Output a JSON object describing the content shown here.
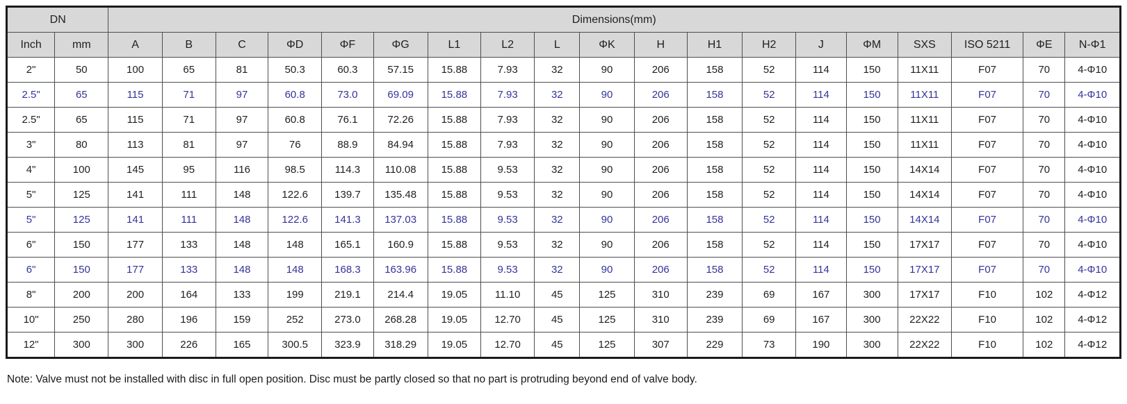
{
  "colors": {
    "header_bg": "#d8d8d8",
    "highlight_text": "#333399",
    "body_text": "#1f1f1f",
    "table_border": "#4d4d4d"
  },
  "table": {
    "group_headers": {
      "dn": "DN",
      "dimensions": "Dimensions(mm)"
    },
    "columns": [
      "Inch",
      "mm",
      "A",
      "B",
      "C",
      "ΦD",
      "ΦF",
      "ΦG",
      "L1",
      "L2",
      "L",
      "ΦK",
      "H",
      "H1",
      "H2",
      "J",
      "ΦM",
      "SXS",
      "ISO 5211",
      "ΦE",
      "N-Φ1"
    ],
    "rows": [
      {
        "highlighted": false,
        "cells": [
          "2\"",
          "50",
          "100",
          "65",
          "81",
          "50.3",
          "60.3",
          "57.15",
          "15.88",
          "7.93",
          "32",
          "90",
          "206",
          "158",
          "52",
          "114",
          "150",
          "11X11",
          "F07",
          "70",
          "4-Φ10"
        ]
      },
      {
        "highlighted": true,
        "cells": [
          "2.5\"",
          "65",
          "115",
          "71",
          "97",
          "60.8",
          "73.0",
          "69.09",
          "15.88",
          "7.93",
          "32",
          "90",
          "206",
          "158",
          "52",
          "114",
          "150",
          "11X11",
          "F07",
          "70",
          "4-Φ10"
        ]
      },
      {
        "highlighted": false,
        "cells": [
          "2.5\"",
          "65",
          "115",
          "71",
          "97",
          "60.8",
          "76.1",
          "72.26",
          "15.88",
          "7.93",
          "32",
          "90",
          "206",
          "158",
          "52",
          "114",
          "150",
          "11X11",
          "F07",
          "70",
          "4-Φ10"
        ]
      },
      {
        "highlighted": false,
        "cells": [
          "3\"",
          "80",
          "113",
          "81",
          "97",
          "76",
          "88.9",
          "84.94",
          "15.88",
          "7.93",
          "32",
          "90",
          "206",
          "158",
          "52",
          "114",
          "150",
          "11X11",
          "F07",
          "70",
          "4-Φ10"
        ]
      },
      {
        "highlighted": false,
        "cells": [
          "4\"",
          "100",
          "145",
          "95",
          "116",
          "98.5",
          "114.3",
          "110.08",
          "15.88",
          "9.53",
          "32",
          "90",
          "206",
          "158",
          "52",
          "114",
          "150",
          "14X14",
          "F07",
          "70",
          "4-Φ10"
        ]
      },
      {
        "highlighted": false,
        "cells": [
          "5\"",
          "125",
          "141",
          "111",
          "148",
          "122.6",
          "139.7",
          "135.48",
          "15.88",
          "9.53",
          "32",
          "90",
          "206",
          "158",
          "52",
          "114",
          "150",
          "14X14",
          "F07",
          "70",
          "4-Φ10"
        ]
      },
      {
        "highlighted": true,
        "cells": [
          "5\"",
          "125",
          "141",
          "111",
          "148",
          "122.6",
          "141.3",
          "137.03",
          "15.88",
          "9.53",
          "32",
          "90",
          "206",
          "158",
          "52",
          "114",
          "150",
          "14X14",
          "F07",
          "70",
          "4-Φ10"
        ]
      },
      {
        "highlighted": false,
        "cells": [
          "6\"",
          "150",
          "177",
          "133",
          "148",
          "148",
          "165.1",
          "160.9",
          "15.88",
          "9.53",
          "32",
          "90",
          "206",
          "158",
          "52",
          "114",
          "150",
          "17X17",
          "F07",
          "70",
          "4-Φ10"
        ]
      },
      {
        "highlighted": true,
        "cells": [
          "6\"",
          "150",
          "177",
          "133",
          "148",
          "148",
          "168.3",
          "163.96",
          "15.88",
          "9.53",
          "32",
          "90",
          "206",
          "158",
          "52",
          "114",
          "150",
          "17X17",
          "F07",
          "70",
          "4-Φ10"
        ]
      },
      {
        "highlighted": false,
        "cells": [
          "8\"",
          "200",
          "200",
          "164",
          "133",
          "199",
          "219.1",
          "214.4",
          "19.05",
          "11.10",
          "45",
          "125",
          "310",
          "239",
          "69",
          "167",
          "300",
          "17X17",
          "F10",
          "102",
          "4-Φ12"
        ]
      },
      {
        "highlighted": false,
        "cells": [
          "10\"",
          "250",
          "280",
          "196",
          "159",
          "252",
          "273.0",
          "268.28",
          "19.05",
          "12.70",
          "45",
          "125",
          "310",
          "239",
          "69",
          "167",
          "300",
          "22X22",
          "F10",
          "102",
          "4-Φ12"
        ]
      },
      {
        "highlighted": false,
        "cells": [
          "12\"",
          "300",
          "300",
          "226",
          "165",
          "300.5",
          "323.9",
          "318.29",
          "19.05",
          "12.70",
          "45",
          "125",
          "307",
          "229",
          "73",
          "190",
          "300",
          "22X22",
          "F10",
          "102",
          "4-Φ12"
        ]
      }
    ]
  },
  "footer": {
    "note": "Note: Valve must not be installed with disc in full open position. Disc must be partly closed so that no part is protruding beyond end of valve body."
  }
}
